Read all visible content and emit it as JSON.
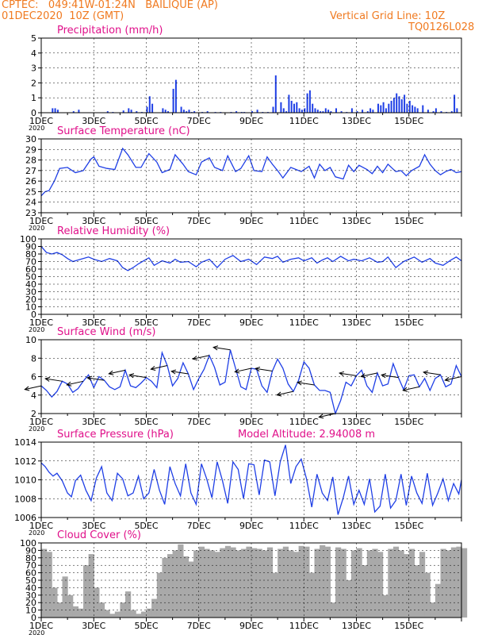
{
  "header": {
    "line1": "CPTEC:   049:41W-01:24N   BAILIQUE (AP)",
    "line2": "01DEC2020  10Z (GMT)",
    "grid_line": "Vertical Grid Line: 10Z",
    "code": "TQ0126L028",
    "model_altitude": "Model Altitude: 2.94008  m"
  },
  "colors": {
    "header": "#f07a20",
    "title": "#e0108a",
    "series": "#1f3fe6",
    "cloud": "#a9a9a9"
  },
  "x_ticks": [
    "1DEC",
    "3DEC",
    "5DEC",
    "7DEC",
    "9DEC",
    "11DEC",
    "13DEC",
    "15DEC"
  ],
  "year_label": "2020",
  "chart_data": [
    {
      "id": "precip",
      "type": "bar",
      "title": "Precipitation (mm/h)",
      "ylim": [
        0,
        5
      ],
      "yticks": [
        0,
        1,
        2,
        3,
        4,
        5
      ],
      "x_unit": "days since 01DEC2020 10Z",
      "x": [
        0.4,
        0.5,
        0.6,
        1.2,
        1.4,
        2.5,
        2.7,
        3.1,
        3.3,
        3.4,
        3.6,
        3.8,
        4.0,
        4.1,
        4.2,
        4.6,
        4.7,
        4.8,
        5.0,
        5.1,
        5.3,
        5.4,
        5.5,
        5.6,
        5.7,
        5.8,
        6.1,
        6.3,
        6.6,
        6.8,
        7.2,
        7.4,
        7.6,
        7.7,
        8.0,
        8.2,
        8.4,
        8.6,
        8.8,
        8.9,
        9.1,
        9.2,
        9.3,
        9.4,
        9.5,
        9.6,
        9.7,
        9.8,
        9.9,
        10.0,
        10.1,
        10.2,
        10.3,
        10.4,
        10.5,
        10.6,
        10.7,
        10.8,
        10.9,
        11.0,
        11.2,
        11.4,
        11.6,
        11.8,
        12.0,
        12.2,
        12.4,
        12.5,
        12.6,
        12.8,
        12.9,
        13.0,
        13.1,
        13.2,
        13.3,
        13.4,
        13.5,
        13.6,
        13.7,
        13.8,
        13.9,
        14.0,
        14.1,
        14.2,
        14.3,
        14.5,
        14.7,
        14.9,
        15.0,
        15.2,
        15.4,
        15.6,
        15.7,
        15.8
      ],
      "values": [
        0.3,
        0.3,
        0.2,
        0.1,
        0.2,
        0.1,
        0.05,
        0.15,
        0.3,
        0.2,
        0.1,
        0.05,
        0.4,
        1.1,
        0.6,
        0.3,
        0.2,
        0.1,
        1.6,
        2.2,
        0.4,
        0.2,
        0.1,
        0.2,
        0.05,
        0.1,
        0.05,
        0.1,
        0.05,
        0.05,
        0.05,
        0.1,
        0.05,
        0.05,
        0.1,
        0.2,
        0.05,
        0.05,
        0.4,
        2.5,
        0.7,
        0.3,
        0.1,
        1.2,
        0.8,
        0.6,
        0.7,
        0.3,
        0.2,
        0.3,
        1.3,
        1.5,
        0.6,
        0.3,
        0.2,
        0.1,
        0.1,
        0.3,
        0.2,
        0.1,
        0.3,
        0.1,
        0.05,
        0.3,
        0.1,
        0.2,
        0.1,
        0.3,
        0.2,
        0.6,
        0.5,
        0.7,
        0.3,
        0.6,
        0.8,
        1.0,
        1.3,
        1.1,
        0.9,
        1.2,
        0.6,
        0.8,
        0.5,
        0.4,
        0.3,
        0.5,
        0.2,
        0.1,
        0.3,
        0.1,
        0.05,
        0.1,
        1.2,
        0.3
      ]
    },
    {
      "id": "temp",
      "type": "line",
      "title": "Surface Temperature (nC)",
      "ylim": [
        23,
        30
      ],
      "yticks": [
        23,
        24,
        25,
        26,
        27,
        28,
        29,
        30
      ],
      "x_unit": "days since 01DEC2020 10Z",
      "x": [
        0,
        0.15,
        0.3,
        0.5,
        0.7,
        1.0,
        1.3,
        1.6,
        1.9,
        2.0,
        2.2,
        2.5,
        2.8,
        3.1,
        3.3,
        3.6,
        3.8,
        4.1,
        4.4,
        4.6,
        4.9,
        5.1,
        5.4,
        5.6,
        5.9,
        6.1,
        6.4,
        6.6,
        6.9,
        7.1,
        7.4,
        7.6,
        7.9,
        8.1,
        8.4,
        8.6,
        8.8,
        9.0,
        9.2,
        9.5,
        9.7,
        9.9,
        10.2,
        10.4,
        10.6,
        10.8,
        11.0,
        11.2,
        11.5,
        11.7,
        11.9,
        12.1,
        12.4,
        12.6,
        12.8,
        13.0,
        13.2,
        13.5,
        13.7,
        13.9,
        14.1,
        14.4,
        14.6,
        14.8,
        15.0,
        15.2,
        15.4,
        15.6,
        15.8,
        16.0
      ],
      "values": [
        24.6,
        25.0,
        25.1,
        26.0,
        27.2,
        27.3,
        26.8,
        27.0,
        28.1,
        28.3,
        27.4,
        27.2,
        27.1,
        29.1,
        28.5,
        27.3,
        27.3,
        28.6,
        27.8,
        26.8,
        27.1,
        28.5,
        27.6,
        26.9,
        26.6,
        27.8,
        28.2,
        27.3,
        27.0,
        28.4,
        26.9,
        27.2,
        28.4,
        27.0,
        26.9,
        28.3,
        27.6,
        27.0,
        26.3,
        27.3,
        27.1,
        26.9,
        27.4,
        26.3,
        27.6,
        27.0,
        27.3,
        26.4,
        26.2,
        27.5,
        26.9,
        27.5,
        27.1,
        26.7,
        27.4,
        26.8,
        27.6,
        26.9,
        27.0,
        26.5,
        27.0,
        27.4,
        28.5,
        27.6,
        27.0,
        26.6,
        26.9,
        27.1,
        26.8,
        26.9
      ]
    },
    {
      "id": "rh",
      "type": "line",
      "title": "Relative Humidity (%)",
      "ylim": [
        0,
        100
      ],
      "yticks": [
        0,
        10,
        20,
        30,
        40,
        50,
        60,
        70,
        80,
        90,
        100
      ],
      "x_unit": "days since 01DEC2020 10Z",
      "x": [
        0,
        0.1,
        0.2,
        0.4,
        0.6,
        0.8,
        1.0,
        1.2,
        1.5,
        1.8,
        2.0,
        2.3,
        2.6,
        2.9,
        3.1,
        3.3,
        3.5,
        3.7,
        3.9,
        4.1,
        4.3,
        4.6,
        4.9,
        5.1,
        5.3,
        5.6,
        5.9,
        6.1,
        6.4,
        6.7,
        7.0,
        7.3,
        7.6,
        7.9,
        8.2,
        8.5,
        8.8,
        9.0,
        9.2,
        9.5,
        9.8,
        10.0,
        10.3,
        10.5,
        10.7,
        10.9,
        11.1,
        11.4,
        11.7,
        11.9,
        12.2,
        12.5,
        12.8,
        13.0,
        13.2,
        13.5,
        13.8,
        14.0,
        14.2,
        14.5,
        14.8,
        15.0,
        15.3,
        15.6,
        15.8,
        16.0
      ],
      "values": [
        90,
        86,
        82,
        80,
        82,
        79,
        74,
        70,
        73,
        76,
        73,
        70,
        74,
        71,
        62,
        58,
        62,
        67,
        71,
        75,
        65,
        71,
        68,
        73,
        69,
        70,
        63,
        69,
        73,
        62,
        73,
        78,
        70,
        73,
        66,
        76,
        74,
        77,
        69,
        73,
        75,
        71,
        75,
        68,
        72,
        75,
        70,
        77,
        71,
        73,
        71,
        75,
        69,
        70,
        76,
        62,
        70,
        73,
        76,
        69,
        74,
        68,
        65,
        72,
        76,
        71
      ]
    },
    {
      "id": "wind",
      "type": "line",
      "title": "Surface Wind (m/s)",
      "ylim": [
        2,
        10
      ],
      "yticks": [
        2,
        4,
        6,
        8,
        10
      ],
      "x_unit": "days since 01DEC2020 10Z",
      "x": [
        0,
        0.2,
        0.4,
        0.6,
        0.8,
        1.0,
        1.2,
        1.4,
        1.6,
        1.8,
        2.0,
        2.2,
        2.4,
        2.6,
        2.8,
        3.0,
        3.2,
        3.4,
        3.6,
        3.8,
        4.0,
        4.2,
        4.4,
        4.6,
        4.8,
        5.0,
        5.2,
        5.4,
        5.6,
        5.8,
        6.0,
        6.2,
        6.4,
        6.6,
        6.8,
        7.0,
        7.2,
        7.4,
        7.6,
        7.8,
        8.0,
        8.2,
        8.4,
        8.6,
        8.8,
        9.0,
        9.2,
        9.4,
        9.6,
        9.8,
        10.0,
        10.2,
        10.4,
        10.6,
        10.8,
        11.0,
        11.2,
        11.4,
        11.6,
        11.8,
        12.0,
        12.2,
        12.4,
        12.6,
        12.8,
        13.0,
        13.2,
        13.4,
        13.6,
        13.8,
        14.0,
        14.2,
        14.4,
        14.6,
        14.8,
        15.0,
        15.2,
        15.4,
        15.6,
        15.8,
        16.0
      ],
      "values": [
        5.0,
        4.5,
        3.8,
        4.4,
        5.5,
        5.2,
        4.3,
        4.7,
        5.5,
        6.2,
        4.8,
        6.0,
        5.6,
        4.9,
        4.6,
        4.9,
        6.7,
        5.0,
        4.8,
        5.3,
        5.9,
        5.5,
        4.8,
        8.6,
        7.2,
        5.0,
        5.8,
        7.5,
        6.3,
        4.6,
        5.8,
        6.8,
        8.3,
        7.0,
        5.1,
        5.4,
        8.9,
        6.9,
        4.9,
        4.6,
        6.9,
        6.8,
        5.0,
        4.3,
        6.6,
        7.9,
        6.9,
        5.2,
        4.4,
        5.6,
        7.6,
        6.9,
        5.1,
        4.5,
        4.5,
        4.3,
        2.0,
        3.4,
        5.4,
        5.0,
        6.1,
        6.7,
        5.0,
        4.3,
        6.4,
        5.0,
        5.2,
        7.4,
        5.9,
        4.6,
        6.1,
        6.2,
        4.9,
        5.8,
        4.5,
        5.8,
        6.2,
        4.9,
        5.2,
        7.2,
        6.0
      ]
    },
    {
      "id": "pres",
      "type": "line",
      "title": "Surface Pressure (hPa)",
      "ylim": [
        1006,
        1014
      ],
      "yticks": [
        1006,
        1008,
        1010,
        1012,
        1014
      ],
      "x_unit": "days since 01DEC2020 10Z",
      "x": [
        0,
        0.15,
        0.3,
        0.45,
        0.6,
        0.8,
        1.0,
        1.15,
        1.3,
        1.5,
        1.7,
        1.9,
        2.1,
        2.3,
        2.5,
        2.7,
        2.9,
        3.1,
        3.3,
        3.5,
        3.7,
        3.9,
        4.1,
        4.3,
        4.5,
        4.7,
        4.9,
        5.1,
        5.3,
        5.5,
        5.7,
        5.9,
        6.1,
        6.3,
        6.5,
        6.7,
        6.9,
        7.1,
        7.3,
        7.5,
        7.7,
        7.9,
        8.1,
        8.3,
        8.5,
        8.7,
        8.9,
        9.1,
        9.3,
        9.5,
        9.7,
        9.9,
        10.1,
        10.3,
        10.5,
        10.7,
        10.9,
        11.1,
        11.3,
        11.5,
        11.7,
        11.9,
        12.1,
        12.3,
        12.5,
        12.7,
        12.9,
        13.1,
        13.3,
        13.5,
        13.7,
        13.9,
        14.1,
        14.3,
        14.5,
        14.7,
        14.9,
        15.1,
        15.3,
        15.5,
        15.7,
        15.9,
        16.0
      ],
      "values": [
        1011.8,
        1011.4,
        1010.8,
        1010.4,
        1010.7,
        1009.9,
        1008.6,
        1008.2,
        1009.9,
        1010.5,
        1008.9,
        1007.8,
        1010.2,
        1011.4,
        1008.6,
        1007.8,
        1010.7,
        1010.1,
        1008.3,
        1008.6,
        1010.4,
        1008.0,
        1008.6,
        1011.1,
        1008.9,
        1007.4,
        1011.4,
        1009.6,
        1008.3,
        1011.7,
        1008.6,
        1007.4,
        1011.7,
        1010.1,
        1008.1,
        1011.9,
        1009.9,
        1007.5,
        1011.9,
        1011.1,
        1008.0,
        1011.7,
        1011.6,
        1008.4,
        1012.1,
        1011.9,
        1008.3,
        1011.9,
        1013.7,
        1009.6,
        1011.4,
        1012.2,
        1010.1,
        1007.1,
        1010.6,
        1008.6,
        1007.8,
        1010.3,
        1006.3,
        1008.1,
        1010.4,
        1007.4,
        1008.9,
        1007.4,
        1010.1,
        1006.6,
        1007.2,
        1010.6,
        1007.0,
        1007.8,
        1010.6,
        1007.3,
        1010.4,
        1008.6,
        1007.5,
        1010.7,
        1007.3,
        1008.6,
        1010.1,
        1007.8,
        1009.6,
        1008.5,
        1010.0
      ]
    },
    {
      "id": "cloud",
      "type": "area",
      "title": "Cloud Cover (%)",
      "ylim": [
        0,
        100
      ],
      "yticks": [
        0,
        10,
        20,
        30,
        40,
        50,
        60,
        70,
        80,
        90,
        100
      ],
      "x_unit": "days since 01DEC2020 10Z",
      "x": [
        0,
        0.2,
        0.4,
        0.6,
        0.8,
        1.0,
        1.2,
        1.4,
        1.6,
        1.8,
        2.0,
        2.2,
        2.4,
        2.6,
        2.8,
        3.0,
        3.2,
        3.4,
        3.6,
        3.8,
        4.0,
        4.2,
        4.4,
        4.6,
        4.8,
        5.0,
        5.2,
        5.4,
        5.6,
        5.8,
        6.0,
        6.2,
        6.4,
        6.6,
        6.8,
        7.0,
        7.2,
        7.4,
        7.6,
        7.8,
        8.0,
        8.2,
        8.4,
        8.6,
        8.8,
        9.0,
        9.2,
        9.4,
        9.6,
        9.8,
        10.0,
        10.2,
        10.4,
        10.6,
        10.8,
        11.0,
        11.2,
        11.4,
        11.6,
        11.8,
        12.0,
        12.2,
        12.4,
        12.6,
        12.8,
        13.0,
        13.2,
        13.4,
        13.6,
        13.8,
        14.0,
        14.2,
        14.4,
        14.6,
        14.8,
        15.0,
        15.2,
        15.4,
        15.6,
        15.8,
        16.0
      ],
      "values": [
        92,
        88,
        40,
        20,
        55,
        30,
        15,
        12,
        70,
        85,
        40,
        20,
        10,
        5,
        8,
        20,
        35,
        10,
        5,
        8,
        12,
        25,
        60,
        80,
        85,
        90,
        98,
        82,
        75,
        90,
        95,
        92,
        90,
        88,
        93,
        96,
        94,
        90,
        92,
        95,
        93,
        92,
        90,
        94,
        60,
        92,
        95,
        90,
        88,
        96,
        95,
        60,
        92,
        97,
        95,
        20,
        94,
        92,
        50,
        90,
        93,
        70,
        90,
        92,
        88,
        30,
        92,
        95,
        90,
        85,
        92,
        70,
        88,
        60,
        20,
        45,
        92,
        90,
        94,
        95,
        93
      ]
    }
  ]
}
